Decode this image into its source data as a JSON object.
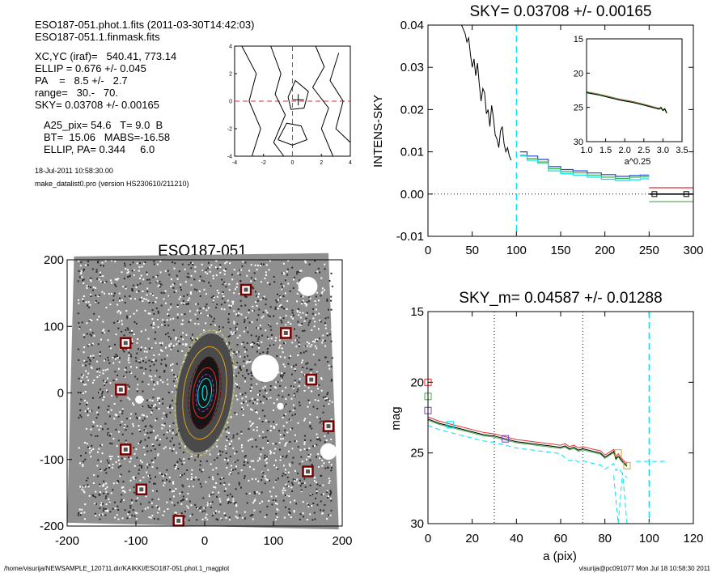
{
  "header": {
    "line1": "ESO187-051.phot.1.fits  (2011-03-30T14:42:03)",
    "line2": "ESO187-051.1.finmask.fits",
    "params": [
      "XC,YC (iraf)=   540.41, 773.14",
      "ELLIP = 0.676 +/- 0.045",
      "PA    =   8.5 +/-   2.7",
      "range=   30.-   70.",
      "SKY= 0.03708 +/- 0.00165"
    ],
    "results": [
      "A25_pix= 54.6   T= 9.0  B",
      "BT=  15.06   MABS=-16.58",
      "ELLIP, PA= 0.344     6.0"
    ],
    "date": "18-Jul-2011 10:58:30.00",
    "program": "make_datalist0.pro (version HS230610/211210)"
  },
  "footer": {
    "path": "/home/visurija/NEWSAMPLE_120711.dir/KAIKKI/ESO187-051.phot.1_magplot",
    "user": "visurija@pc091077  Mon Jul 18 10:58:30 2011"
  },
  "colors": {
    "black": "#000000",
    "cyan": "#00e5ee",
    "red": "#e03030",
    "green": "#3cb043",
    "blue": "#2040e0",
    "purple": "#8040c0",
    "orange": "#e0a020",
    "darkred": "#7a0000"
  },
  "chart_data": [
    {
      "id": "contour",
      "type": "contour",
      "xlim": [
        -4,
        4
      ],
      "ylim": [
        -4,
        4
      ],
      "xticks": [
        -4,
        -2,
        0,
        2,
        4
      ],
      "yticks": [
        -4,
        -2,
        0,
        2,
        4
      ],
      "center_marker": [
        0.4,
        0.1
      ],
      "crosshair": [
        0,
        0
      ]
    },
    {
      "id": "sky_profile",
      "type": "line",
      "title": "SKY= 0.03708 +/- 0.00165",
      "xlabel": "",
      "ylabel": "INTENS-SKY",
      "xlim": [
        0,
        300
      ],
      "ylim": [
        -0.01,
        0.04
      ],
      "xticks": [
        0,
        50,
        100,
        150,
        200,
        250,
        300
      ],
      "yticks": [
        -0.01,
        0.0,
        0.01,
        0.02,
        0.03,
        0.04
      ],
      "ytick_labels": [
        "-0.01",
        "0.00",
        "0.01",
        "0.02",
        "0.03",
        "0.04"
      ],
      "vline": 100,
      "raw": {
        "x": [
          38,
          40,
          42,
          44,
          46,
          48,
          50,
          52,
          54,
          56,
          58,
          60,
          62,
          64,
          66,
          68,
          70,
          72,
          74,
          76,
          78,
          80,
          82,
          84,
          86,
          88,
          90,
          92,
          94
        ],
        "y": [
          0.04,
          0.039,
          0.038,
          0.036,
          0.037,
          0.033,
          0.03,
          0.032,
          0.028,
          0.031,
          0.026,
          0.022,
          0.025,
          0.024,
          0.019,
          0.02,
          0.016,
          0.021,
          0.018,
          0.014,
          0.013,
          0.011,
          0.015,
          0.016,
          0.012,
          0.01,
          0.011,
          0.009,
          0.008
        ]
      },
      "steps": {
        "edges": [
          104,
          112,
          124,
          136,
          150,
          164,
          180,
          196,
          212,
          228,
          240,
          250
        ],
        "series": [
          {
            "color": "blue",
            "values": [
              0.01,
              0.009,
              0.0082,
              0.0065,
              0.0058,
              0.0055,
              0.005,
              0.0046,
              0.0042,
              0.0044,
              0.0045
            ]
          },
          {
            "color": "green",
            "values": [
              0.0092,
              0.0084,
              0.0076,
              0.006,
              0.0053,
              0.005,
              0.0045,
              0.004,
              0.0037,
              0.004,
              0.0041
            ]
          },
          {
            "color": "cyan",
            "values": [
              0.009,
              0.008,
              0.0073,
              0.0055,
              0.0048,
              0.0045,
              0.004,
              0.0035,
              0.0032,
              0.0034,
              0.0036
            ]
          }
        ]
      },
      "sky_levels": [
        {
          "color": "red",
          "value": 0.0015
        },
        {
          "color": "black",
          "value": 0.0
        },
        {
          "color": "green",
          "value": -0.0018
        }
      ],
      "sky_markers": [
        [
          256,
          0.0
        ],
        [
          292,
          0.0
        ]
      ]
    },
    {
      "id": "sky_inset",
      "type": "line",
      "xlabel": "a^0.25",
      "xlim": [
        1.0,
        3.5
      ],
      "ylim": [
        30,
        15
      ],
      "xticks": [
        1.0,
        1.5,
        2.0,
        2.5,
        3.0,
        3.5
      ],
      "xtick_labels": [
        "1.0",
        "1.5",
        "2.0",
        "2.5",
        "3.0",
        "3.5"
      ],
      "yticks": [
        15,
        20,
        25,
        30
      ],
      "x": [
        1.0,
        1.3,
        1.6,
        1.9,
        2.2,
        2.5,
        2.7,
        2.9,
        2.95,
        3.0,
        3.05,
        3.1
      ],
      "y": [
        22.8,
        23.1,
        23.5,
        23.9,
        24.2,
        24.6,
        24.9,
        25.2,
        25.0,
        25.4,
        25.2,
        25.8
      ]
    },
    {
      "id": "galaxy_image",
      "type": "image",
      "title": "ESO187-051",
      "xlim": [
        -200,
        200
      ],
      "ylim": [
        -200,
        200
      ],
      "xticks": [
        -200,
        -100,
        0,
        100,
        200
      ],
      "yticks": [
        -200,
        -100,
        0,
        100,
        200
      ],
      "stars": [
        [
          60,
          155
        ],
        [
          118,
          90
        ],
        [
          -115,
          75
        ],
        [
          -122,
          5
        ],
        [
          155,
          20
        ],
        [
          180,
          -50
        ],
        [
          150,
          -118
        ],
        [
          -115,
          -85
        ],
        [
          -92,
          -145
        ],
        [
          -38,
          -192
        ]
      ],
      "ellipse_axes": [
        22,
        28,
        38,
        52,
        70,
        95
      ]
    },
    {
      "id": "mag_profile",
      "type": "line",
      "title": "SKY_m=  0.04587 +/- 0.01288",
      "xlabel": "a (pix)",
      "ylabel": "mag",
      "xlim": [
        0,
        120
      ],
      "ylim": [
        30,
        15
      ],
      "xticks": [
        0,
        20,
        40,
        60,
        80,
        100,
        120
      ],
      "yticks": [
        15,
        20,
        25,
        30
      ],
      "vlines_dotted": [
        30,
        70
      ],
      "vline_cyan": 100,
      "x": [
        0,
        5,
        10,
        15,
        20,
        25,
        30,
        35,
        40,
        45,
        50,
        55,
        60,
        62,
        64,
        66,
        68,
        70,
        75,
        78,
        80,
        82,
        84,
        85,
        86,
        88,
        90
      ],
      "y": [
        22.6,
        22.9,
        23.1,
        23.3,
        23.5,
        23.7,
        23.8,
        24.0,
        24.2,
        24.3,
        24.4,
        24.5,
        24.6,
        24.5,
        24.7,
        24.6,
        24.8,
        24.7,
        24.9,
        25.0,
        25.3,
        25.1,
        24.9,
        25.4,
        25.2,
        25.6,
        25.9
      ],
      "markers": [
        {
          "color": "red",
          "x": 0,
          "y": 20.0
        },
        {
          "color": "green",
          "x": 0,
          "y": 21.0
        },
        {
          "color": "purple",
          "x": 0,
          "y": 22.0
        },
        {
          "color": "cyan",
          "x": 10,
          "y": 23.0
        },
        {
          "color": "purple",
          "x": 35,
          "y": 24.0
        },
        {
          "color": "orange",
          "x": 86,
          "y": 25.0
        },
        {
          "color": "orange",
          "x": 90,
          "y": 25.9
        }
      ]
    }
  ]
}
